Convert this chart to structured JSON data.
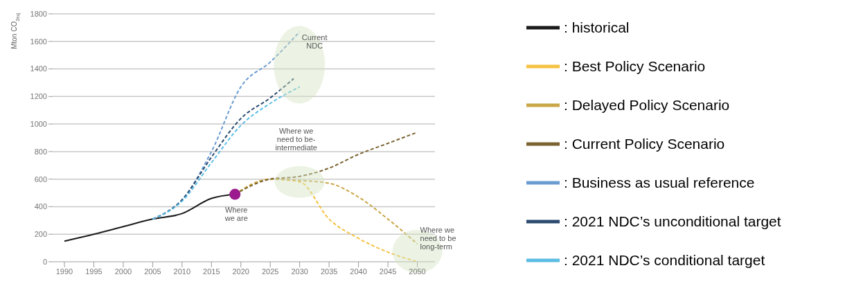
{
  "chart_data": {
    "type": "line",
    "ylabel": "Mton CO$_{2eq}$",
    "xlim": [
      1988,
      2053
    ],
    "xticks": [
      1990,
      1995,
      2000,
      2005,
      2010,
      2015,
      2020,
      2025,
      2030,
      2035,
      2040,
      2045,
      2050
    ],
    "ylim": [
      0,
      1800
    ],
    "yticks": [
      0,
      200,
      400,
      600,
      800,
      1000,
      1200,
      1400,
      1600,
      1800
    ],
    "grid": "y",
    "legend": "right",
    "marker": "none",
    "series": [
      {
        "name": ": historical",
        "color": "#1a1a1a",
        "line_style": "solid",
        "x": [
          1990,
          1995,
          2000,
          2005,
          2010,
          2015,
          2019
        ],
        "values": [
          150,
          200,
          255,
          310,
          350,
          460,
          490
        ]
      },
      {
        "name": ": Best Policy Scenario",
        "color": "#f5c242",
        "line_style": "dashed",
        "x": [
          2019,
          2025,
          2030,
          2035,
          2040,
          2045,
          2050
        ],
        "values": [
          490,
          600,
          580,
          310,
          170,
          70,
          0
        ]
      },
      {
        "name": ": Delayed Policy Scenario",
        "color": "#c9a646",
        "line_style": "dashed",
        "x": [
          2019,
          2025,
          2030,
          2035,
          2040,
          2045,
          2050
        ],
        "values": [
          490,
          600,
          590,
          570,
          470,
          310,
          130
        ]
      },
      {
        "name": ": Current Policy Scenario",
        "color": "#7a6330",
        "line_style": "dashed",
        "x": [
          2019,
          2025,
          2030,
          2035,
          2040,
          2045,
          2050
        ],
        "values": [
          490,
          600,
          620,
          680,
          780,
          860,
          940
        ]
      },
      {
        "name": ": Business as usual reference",
        "color": "#6a9bd1",
        "line_style": "dashed",
        "x": [
          2005,
          2010,
          2015,
          2020,
          2025,
          2030
        ],
        "values": [
          310,
          450,
          800,
          1270,
          1450,
          1670
        ]
      },
      {
        "name": ": 2021 NDC’s unconditional target",
        "color": "#2b4a6f",
        "line_style": "dashed",
        "x": [
          2005,
          2010,
          2015,
          2020,
          2025,
          2029
        ],
        "values": [
          310,
          450,
          760,
          1040,
          1190,
          1330
        ]
      },
      {
        "name": ": 2021 NDC’s conditional target",
        "color": "#5bbde4",
        "line_style": "dashed",
        "x": [
          2005,
          2010,
          2015,
          2020,
          2025,
          2030
        ],
        "values": [
          310,
          440,
          720,
          990,
          1150,
          1270
        ]
      },
      {
        "type": "scatter",
        "color": "#9b1b8e",
        "marker": "circle",
        "x": [
          2019
        ],
        "values": [
          490
        ]
      }
    ],
    "annotations": [
      {
        "text": "Where\nwe are",
        "x": 2019,
        "y": 490
      },
      "Where we\nneed to be-\nintermediate",
      "Current\nNDC",
      {
        "text": "Where we\nneed to be\nlong-term",
        "x": 2050,
        "y": 0
      }
    ]
  }
}
